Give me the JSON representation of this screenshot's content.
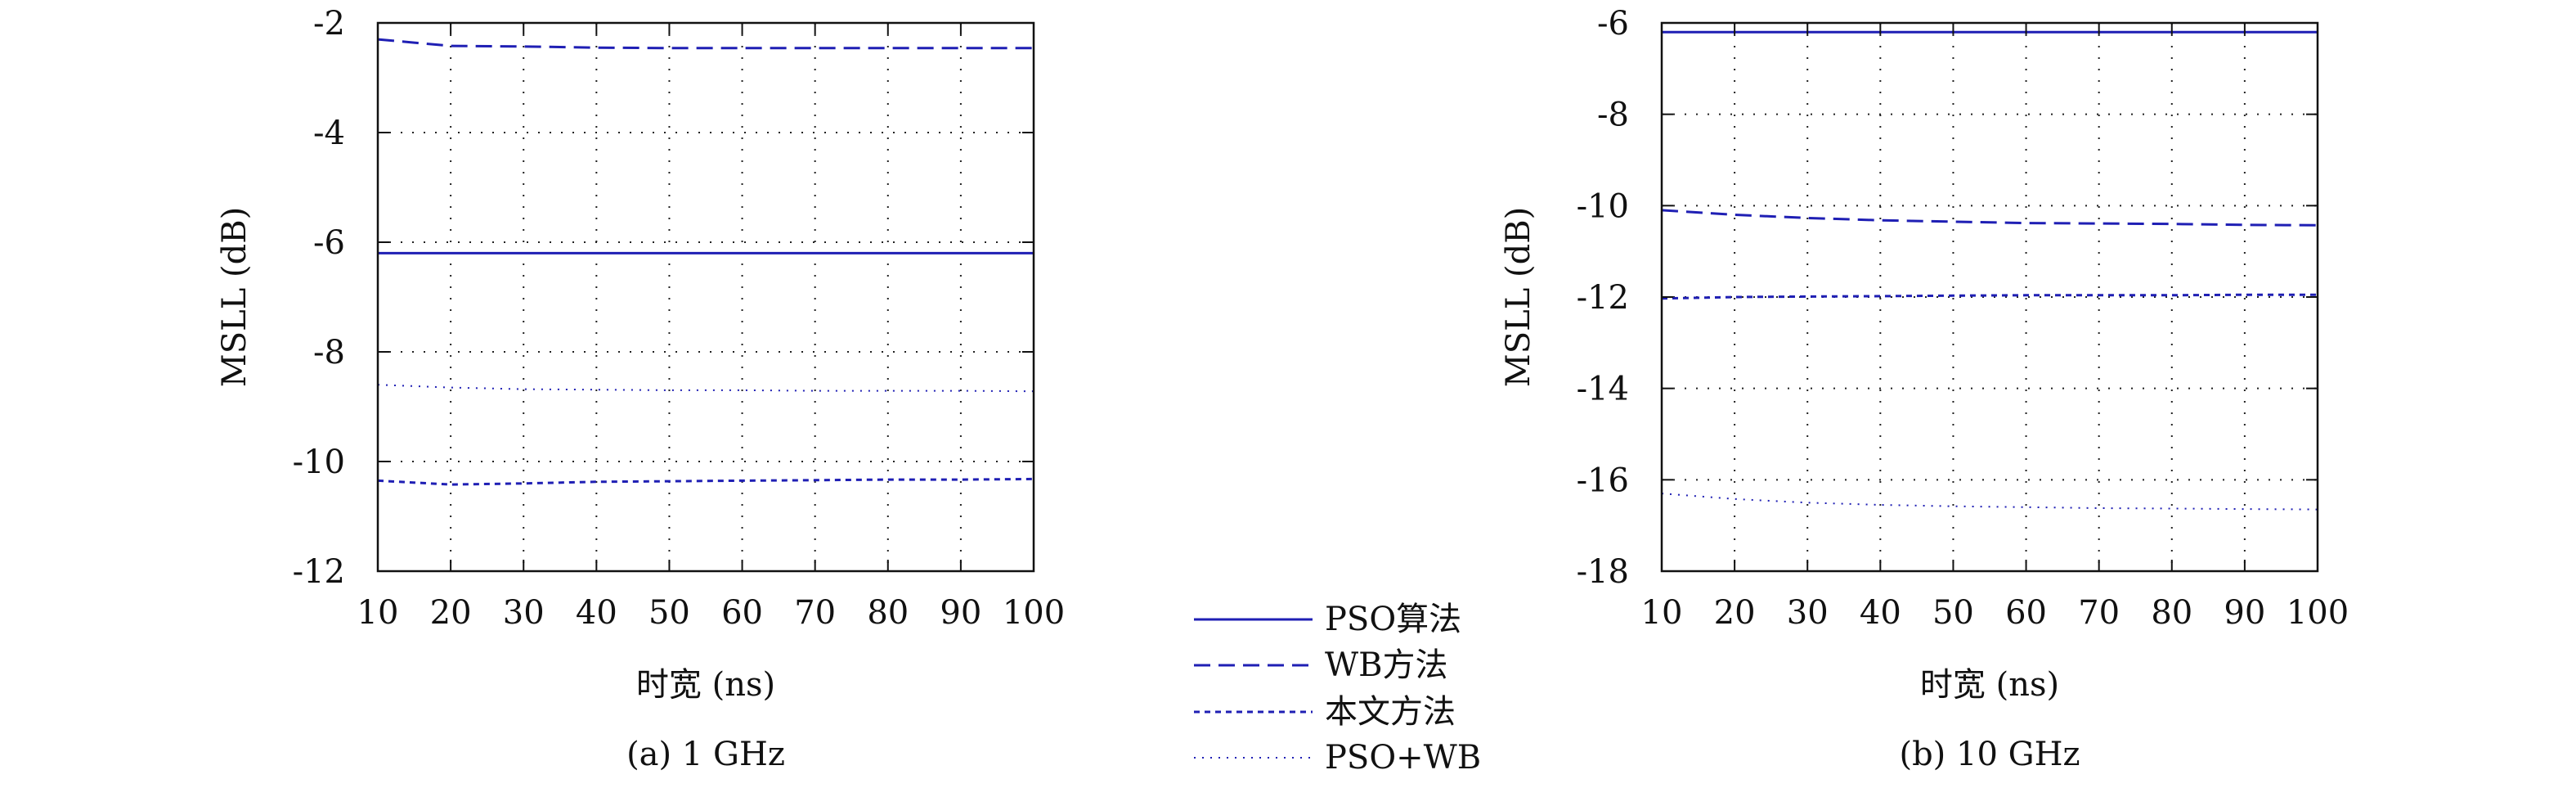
{
  "chart_data": [
    {
      "type": "line",
      "caption": "(a) 1 GHz",
      "xlabel": "时宽 (ns)",
      "ylabel": "MSLL (dB)",
      "xlim": [
        10,
        100
      ],
      "ylim": [
        -12,
        -2
      ],
      "xticks": [
        10,
        20,
        30,
        40,
        50,
        60,
        70,
        80,
        90,
        100
      ],
      "yticks": [
        -12,
        -10,
        -8,
        -6,
        -4,
        -2
      ],
      "grid": true,
      "x": [
        10,
        20,
        30,
        40,
        50,
        60,
        70,
        80,
        90,
        100
      ],
      "series": [
        {
          "name": "PSO算法",
          "values": [
            -6.2,
            -6.2,
            -6.2,
            -6.2,
            -6.2,
            -6.2,
            -6.2,
            -6.2,
            -6.2,
            -6.2
          ]
        },
        {
          "name": "WB方法",
          "values": [
            -2.3,
            -2.42,
            -2.43,
            -2.45,
            -2.46,
            -2.46,
            -2.46,
            -2.46,
            -2.46,
            -2.46
          ]
        },
        {
          "name": "本文方法",
          "values": [
            -10.35,
            -10.42,
            -10.4,
            -10.37,
            -10.36,
            -10.35,
            -10.34,
            -10.33,
            -10.33,
            -10.32
          ]
        },
        {
          "name": "PSO+WB",
          "values": [
            -8.6,
            -8.65,
            -8.68,
            -8.69,
            -8.7,
            -8.7,
            -8.71,
            -8.71,
            -8.71,
            -8.72
          ]
        }
      ]
    },
    {
      "type": "line",
      "caption": "(b) 10 GHz",
      "xlabel": "时宽 (ns)",
      "ylabel": "MSLL (dB)",
      "xlim": [
        10,
        100
      ],
      "ylim": [
        -18,
        -6
      ],
      "xticks": [
        10,
        20,
        30,
        40,
        50,
        60,
        70,
        80,
        90,
        100
      ],
      "yticks": [
        -18,
        -16,
        -14,
        -12,
        -10,
        -8,
        -6
      ],
      "grid": true,
      "x": [
        10,
        20,
        30,
        40,
        50,
        60,
        70,
        80,
        90,
        100
      ],
      "series": [
        {
          "name": "PSO算法",
          "values": [
            -6.2,
            -6.2,
            -6.2,
            -6.2,
            -6.2,
            -6.2,
            -6.2,
            -6.2,
            -6.2,
            -6.2
          ]
        },
        {
          "name": "WB方法",
          "values": [
            -10.1,
            -10.2,
            -10.27,
            -10.32,
            -10.35,
            -10.38,
            -10.39,
            -10.4,
            -10.42,
            -10.43
          ]
        },
        {
          "name": "本文方法",
          "values": [
            -12.03,
            -12.0,
            -11.99,
            -11.98,
            -11.97,
            -11.96,
            -11.96,
            -11.96,
            -11.95,
            -11.95
          ]
        },
        {
          "name": "PSO+WB",
          "values": [
            -16.3,
            -16.42,
            -16.5,
            -16.55,
            -16.58,
            -16.6,
            -16.62,
            -16.63,
            -16.64,
            -16.65
          ]
        }
      ]
    }
  ],
  "legend": {
    "placement": "bottom-center",
    "entries": [
      "PSO算法",
      "WB方法",
      "本文方法",
      "PSO+WB"
    ]
  },
  "colors": {
    "series": "#1f1fb4",
    "axis": "#111111",
    "grid": "#222222"
  }
}
